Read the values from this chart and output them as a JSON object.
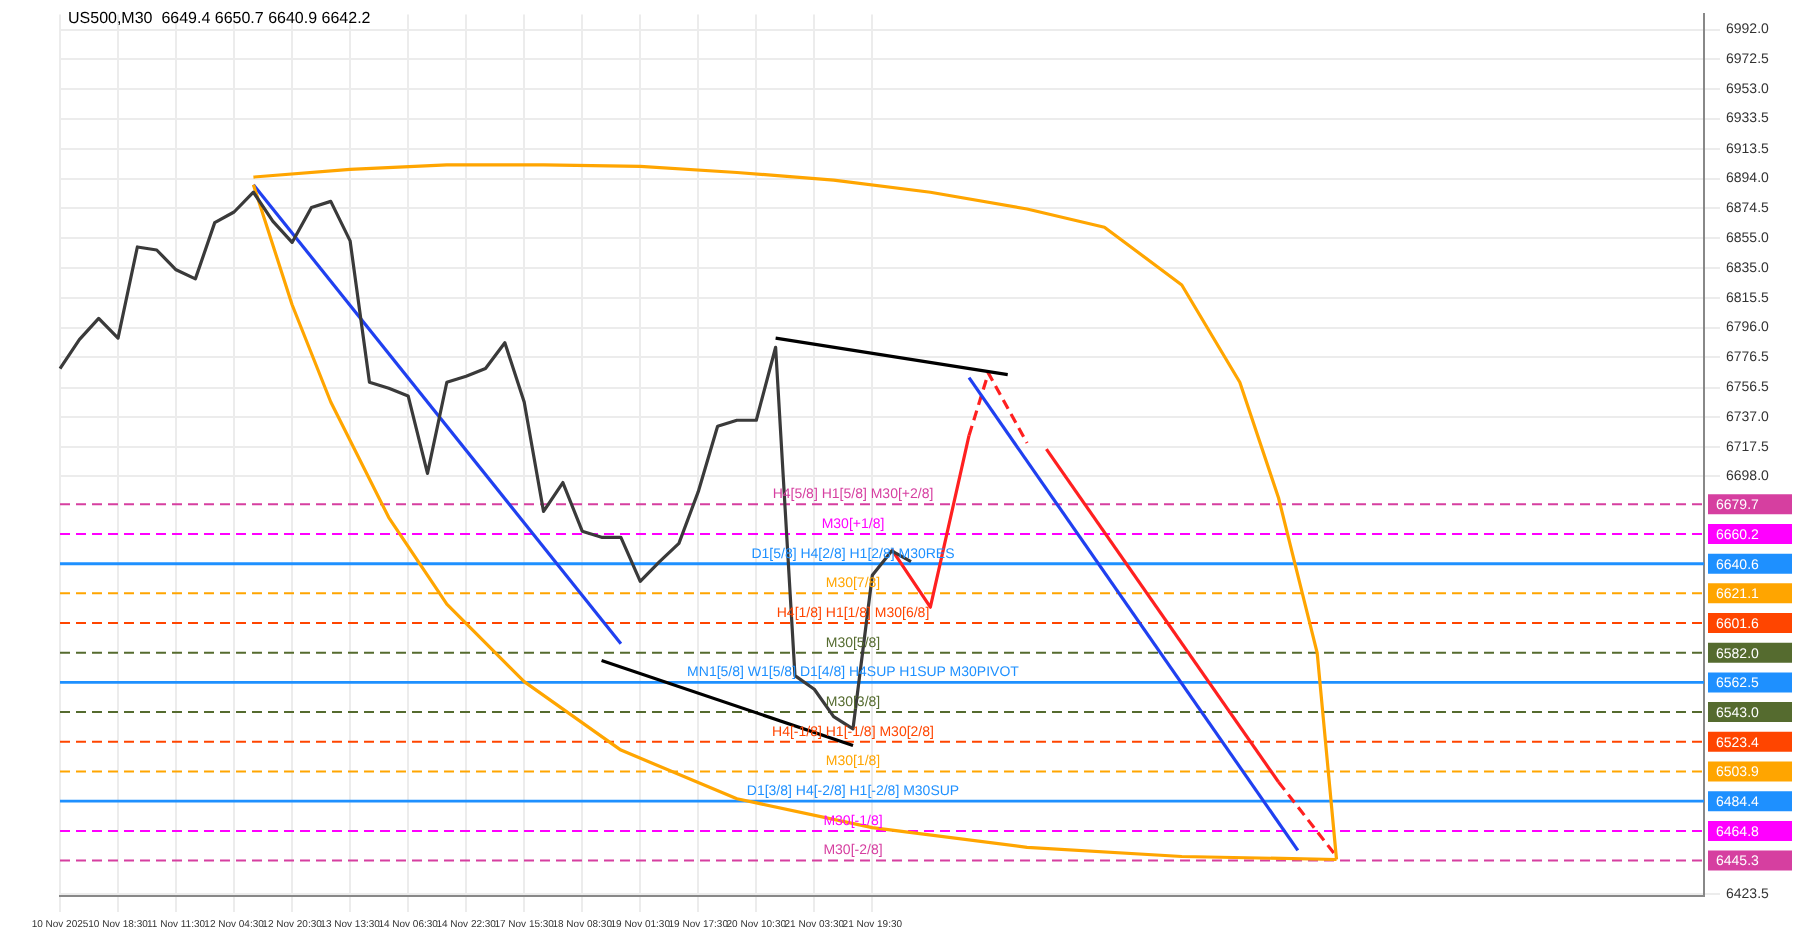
{
  "chart_data": {
    "type": "line",
    "title": "US500,M30  6649.4 6650.7 6640.9 6642.2",
    "categories": [
      "10 Nov 2025",
      null,
      null,
      "10 Nov 18:30",
      null,
      null,
      "11 Nov 11:30",
      null,
      null,
      "12 Nov 04:30",
      null,
      null,
      "12 Nov 20:30",
      null,
      null,
      "13 Nov 13:30",
      null,
      null,
      "14 Nov 06:30",
      null,
      null,
      "14 Nov 22:30",
      null,
      null,
      "17 Nov 15:30",
      null,
      null,
      "18 Nov 08:30",
      null,
      null,
      "19 Nov 01:30",
      null,
      null,
      "19 Nov 17:30",
      null,
      null,
      "20 Nov 10:30",
      null,
      null,
      "21 Nov 03:30",
      null,
      null,
      "21 Nov 19:30",
      null,
      null,
      null,
      null,
      null,
      null,
      null,
      null,
      null,
      null,
      null,
      null,
      null,
      null,
      null,
      null,
      null,
      null,
      null,
      null,
      null,
      null,
      null,
      null,
      null,
      null,
      null,
      null,
      null,
      null,
      null,
      null,
      null,
      null,
      null,
      null,
      null,
      null,
      null,
      null,
      null,
      null,
      null
    ],
    "series": [
      {
        "color": "#3a3a3a",
        "values": [
          6769,
          6788,
          6802,
          6789,
          6849,
          6847,
          6834,
          6828,
          6865,
          6872,
          6885,
          6866,
          6852,
          6875,
          6879,
          6853,
          6760,
          6756,
          6751,
          6700,
          6760,
          6764,
          6769,
          6786,
          6747,
          6675,
          6694,
          6662,
          6658,
          6658,
          6629,
          6642,
          6654,
          6688,
          6731,
          6735,
          6735,
          6783,
          6567,
          6558,
          6540,
          6532,
          6633,
          6649,
          6642,
          null,
          null,
          null,
          null,
          null,
          null,
          null,
          null,
          null,
          null,
          null,
          null,
          null,
          null,
          null,
          null,
          null,
          null,
          null,
          null,
          null,
          null,
          null,
          null,
          null,
          null,
          null,
          null,
          null,
          null,
          null,
          null,
          null,
          null,
          null,
          null,
          null,
          null,
          null,
          null,
          null
        ]
      },
      {
        "color": "#ffa500",
        "values": [
          null,
          null,
          null,
          null,
          null,
          null,
          null,
          null,
          null,
          null,
          6895,
          null,
          null,
          null,
          null,
          6900,
          null,
          null,
          null,
          null,
          6903,
          null,
          null,
          null,
          null,
          6903,
          null,
          null,
          null,
          null,
          6902,
          null,
          null,
          null,
          null,
          6898,
          null,
          null,
          null,
          null,
          6893,
          null,
          null,
          null,
          null,
          6885,
          null,
          null,
          null,
          null,
          6874,
          null,
          null,
          null,
          6862,
          null,
          null,
          null,
          6824,
          null,
          null,
          6760,
          null,
          6684,
          null,
          6582,
          6446,
          null,
          null,
          null,
          null,
          null,
          null,
          null,
          null,
          null,
          null,
          null,
          null,
          null,
          null,
          null,
          null,
          null,
          null,
          null
        ]
      },
      {
        "color": "#ffa500",
        "values": [
          null,
          null,
          null,
          null,
          null,
          null,
          null,
          null,
          null,
          null,
          6890,
          null,
          6811,
          null,
          6747,
          null,
          null,
          6671,
          null,
          null,
          6614,
          null,
          null,
          null,
          6563,
          null,
          null,
          null,
          null,
          6518,
          null,
          null,
          null,
          null,
          null,
          6486,
          null,
          null,
          null,
          null,
          null,
          null,
          6467,
          null,
          null,
          null,
          null,
          null,
          null,
          null,
          6454,
          null,
          null,
          null,
          null,
          null,
          null,
          null,
          6448,
          null,
          null,
          null,
          null,
          null,
          null,
          null,
          6446,
          null,
          null,
          null,
          null,
          null,
          null,
          null,
          null,
          null,
          null,
          null,
          null,
          null,
          null,
          null,
          null,
          null,
          null,
          null
        ]
      },
      {
        "color": "#2040f0",
        "values": [
          null,
          null,
          null,
          null,
          null,
          null,
          null,
          null,
          null,
          null,
          6890,
          null,
          null,
          null,
          null,
          null,
          null,
          null,
          null,
          null,
          null,
          null,
          null,
          null,
          null,
          null,
          null,
          null,
          null,
          6588,
          null,
          null,
          null,
          null,
          null,
          null,
          null,
          null,
          null,
          null,
          null,
          null,
          null,
          null,
          null,
          null,
          null,
          null,
          null,
          null,
          null,
          null,
          null,
          null,
          null,
          null,
          null,
          null,
          null,
          null,
          null,
          null,
          null,
          null,
          null,
          null,
          null,
          null,
          null,
          null,
          null,
          null,
          null,
          null,
          null,
          null,
          null,
          null,
          null,
          null,
          null,
          null,
          null,
          null,
          null,
          null
        ]
      },
      {
        "color": "#000000",
        "values": [
          null,
          null,
          null,
          null,
          null,
          null,
          null,
          null,
          null,
          null,
          null,
          null,
          null,
          null,
          null,
          null,
          null,
          null,
          null,
          null,
          null,
          null,
          null,
          null,
          null,
          null,
          null,
          null,
          null,
          null,
          null,
          null,
          null,
          null,
          null,
          null,
          null,
          6789,
          null,
          null,
          null,
          null,
          null,
          null,
          null,
          null,
          null,
          null,
          null,
          6765,
          null,
          null,
          null,
          null,
          null,
          null,
          null,
          null,
          null,
          null,
          null,
          null,
          null,
          null,
          null,
          null,
          null,
          null,
          null,
          null,
          null,
          null,
          null,
          null,
          null,
          null,
          null,
          null,
          null,
          null,
          null,
          null,
          null,
          null,
          null,
          null
        ]
      },
      {
        "color": "#000000",
        "values": [
          null,
          null,
          null,
          null,
          null,
          null,
          null,
          null,
          null,
          null,
          null,
          null,
          null,
          null,
          null,
          null,
          null,
          null,
          null,
          null,
          null,
          null,
          null,
          null,
          null,
          null,
          null,
          null,
          6577,
          null,
          null,
          null,
          null,
          null,
          null,
          null,
          null,
          null,
          null,
          null,
          null,
          6521,
          null,
          null,
          null,
          null,
          null,
          null,
          null,
          null,
          null,
          null,
          null,
          null,
          null,
          null,
          null,
          null,
          null,
          null,
          null,
          null,
          null,
          null,
          null,
          null,
          null,
          null,
          null,
          null,
          null,
          null,
          null,
          null,
          null,
          null,
          null,
          null,
          null,
          null,
          null,
          null,
          null,
          null,
          null,
          null
        ]
      },
      {
        "color": "#2040f0",
        "values": [
          null,
          null,
          null,
          null,
          null,
          null,
          null,
          null,
          null,
          null,
          null,
          null,
          null,
          null,
          null,
          null,
          null,
          null,
          null,
          null,
          null,
          null,
          null,
          null,
          null,
          null,
          null,
          null,
          null,
          null,
          null,
          null,
          null,
          null,
          null,
          null,
          null,
          null,
          null,
          null,
          null,
          null,
          null,
          null,
          null,
          null,
          null,
          6763,
          null,
          null,
          null,
          null,
          null,
          null,
          null,
          null,
          null,
          null,
          null,
          null,
          null,
          null,
          null,
          null,
          6452,
          null,
          null,
          null,
          null,
          null,
          null,
          null,
          null,
          null,
          null,
          null,
          null,
          null,
          null,
          null,
          null,
          null,
          null,
          null,
          null,
          null
        ]
      },
      {
        "color": "#ff2020",
        "values": [
          null,
          null,
          null,
          null,
          null,
          null,
          null,
          null,
          null,
          null,
          null,
          null,
          null,
          null,
          null,
          null,
          null,
          null,
          null,
          null,
          null,
          null,
          null,
          null,
          null,
          null,
          null,
          null,
          null,
          null,
          null,
          null,
          null,
          null,
          null,
          null,
          null,
          null,
          null,
          null,
          null,
          null,
          null,
          6650,
          null,
          6612,
          null,
          6725,
          null,
          null,
          null,
          null,
          null,
          null,
          null,
          null,
          null,
          null,
          null,
          null,
          null,
          null,
          null,
          null,
          null,
          null,
          null,
          null,
          null,
          null,
          null,
          null,
          null,
          null,
          null,
          null,
          null,
          null,
          null,
          null,
          null,
          null,
          null,
          null,
          null,
          null
        ]
      },
      {
        "color": "#ff2020",
        "line_style": "dashed",
        "values": [
          null,
          null,
          null,
          null,
          null,
          null,
          null,
          null,
          null,
          null,
          null,
          null,
          null,
          null,
          null,
          null,
          null,
          null,
          null,
          null,
          null,
          null,
          null,
          null,
          null,
          null,
          null,
          null,
          null,
          null,
          null,
          null,
          null,
          null,
          null,
          null,
          null,
          null,
          null,
          null,
          null,
          null,
          null,
          null,
          null,
          null,
          null,
          6725,
          6766,
          null,
          6720,
          null,
          null,
          null,
          null,
          null,
          null,
          null,
          null,
          null,
          null,
          null,
          null,
          null,
          null,
          null,
          null,
          null,
          null,
          null,
          null,
          null,
          null,
          null,
          null,
          null,
          null,
          null,
          null,
          null,
          null,
          null,
          null,
          null,
          null,
          null
        ]
      },
      {
        "color": "#ff2020",
        "values": [
          null,
          null,
          null,
          null,
          null,
          null,
          null,
          null,
          null,
          null,
          null,
          null,
          null,
          null,
          null,
          null,
          null,
          null,
          null,
          null,
          null,
          null,
          null,
          null,
          null,
          null,
          null,
          null,
          null,
          null,
          null,
          null,
          null,
          null,
          null,
          null,
          null,
          null,
          null,
          null,
          null,
          null,
          null,
          null,
          null,
          null,
          null,
          null,
          null,
          null,
          null,
          6716,
          null,
          null,
          null,
          null,
          null,
          null,
          null,
          null,
          null,
          null,
          null,
          6497,
          null,
          null,
          null,
          null,
          null,
          null,
          null,
          null,
          null,
          null,
          null,
          null,
          null,
          null,
          null,
          null,
          null,
          null,
          null,
          null,
          null,
          null
        ]
      },
      {
        "color": "#ff2020",
        "line_style": "dashed",
        "values": [
          null,
          null,
          null,
          null,
          null,
          null,
          null,
          null,
          null,
          null,
          null,
          null,
          null,
          null,
          null,
          null,
          null,
          null,
          null,
          null,
          null,
          null,
          null,
          null,
          null,
          null,
          null,
          null,
          null,
          null,
          null,
          null,
          null,
          null,
          null,
          null,
          null,
          null,
          null,
          null,
          null,
          null,
          null,
          null,
          null,
          null,
          null,
          null,
          null,
          null,
          null,
          null,
          null,
          null,
          null,
          null,
          null,
          null,
          null,
          null,
          null,
          null,
          null,
          6497,
          null,
          null,
          6448,
          null,
          null,
          null,
          null,
          null,
          null,
          null,
          null,
          null,
          null,
          null,
          null,
          null,
          null,
          null,
          null,
          null,
          null,
          null
        ]
      }
    ],
    "ylim": [
      6422,
      7002
    ],
    "yticks": [
      {
        "value": 6992,
        "label": "6992.0"
      },
      6972.5,
      {
        "value": 6953,
        "label": "6953.0"
      },
      6933.5,
      6913.5,
      {
        "value": 6894,
        "label": "6894.0"
      },
      6874.5,
      {
        "value": 6855,
        "label": "6855.0"
      },
      {
        "value": 6835,
        "label": "6835.0"
      },
      6815.5,
      {
        "value": 6796,
        "label": "6796.0"
      },
      6776.5,
      6756.5,
      {
        "value": 6737,
        "label": "6737.0"
      },
      6717.5,
      {
        "value": 6698,
        "label": "6698.0"
      },
      6423.5
    ],
    "annotations": [
      "6679.7",
      "6660.2",
      "6640.6",
      "6621.1",
      "6601.6",
      "6582.0",
      "6562.5",
      "6543.0",
      "6523.4",
      "6503.9",
      "6484.4",
      "6464.8",
      "6445.3"
    ],
    "ref_lines": [
      {
        "axis": "y",
        "value": 6679.7,
        "label": "H4[5/8] H1[5/8] M30[+2/8]",
        "color": "#d63fa0",
        "line_style": "dashed"
      },
      {
        "axis": "y",
        "value": 6660.2,
        "label": "M30[+1/8]",
        "color": "#ff00ff",
        "line_style": "dashed"
      },
      {
        "axis": "y",
        "value": 6640.6,
        "label": "D1[5/8] H4[2/8] H1[2/8] M30RES",
        "color": "#1e90ff",
        "line_style": "solid"
      },
      {
        "axis": "y",
        "value": 6621.1,
        "label": "M30[7/8]",
        "color": "#ffa500",
        "line_style": "dashed"
      },
      {
        "axis": "y",
        "value": 6601.6,
        "label": "H4[1/8] H1[1/8] M30[6/8]",
        "color": "#ff4500",
        "line_style": "dashed"
      },
      {
        "axis": "y",
        "value": 6582.0,
        "label": "M30[5/8]",
        "color": "#556b2f",
        "line_style": "dashed"
      },
      {
        "axis": "y",
        "value": 6562.5,
        "label": "MN1[5/8] W1[5/8] D1[4/8] H4SUP H1SUP M30PIVOT",
        "color": "#1e90ff",
        "line_style": "solid"
      },
      {
        "axis": "y",
        "value": 6543.0,
        "label": "M30[3/8]",
        "color": "#556b2f",
        "line_style": "dashed"
      },
      {
        "axis": "y",
        "value": 6523.4,
        "label": "H4[-1/8] H1[-1/8] M30[2/8]",
        "color": "#ff4500",
        "line_style": "dashed"
      },
      {
        "axis": "y",
        "value": 6503.9,
        "label": "M30[1/8]",
        "color": "#ffa500",
        "line_style": "dashed"
      },
      {
        "axis": "y",
        "value": 6484.4,
        "label": "D1[3/8] H4[-2/8] H1[-2/8] M30SUP",
        "color": "#1e90ff",
        "line_style": "solid"
      },
      {
        "axis": "y",
        "value": 6464.8,
        "label": "M30[-1/8]",
        "color": "#ff00ff",
        "line_style": "dashed"
      },
      {
        "axis": "y",
        "value": 6445.3,
        "label": "M30[-2/8]",
        "color": "#d63fa0",
        "line_style": "dashed"
      }
    ],
    "grid": true,
    "legend": false,
    "marker": "none"
  }
}
